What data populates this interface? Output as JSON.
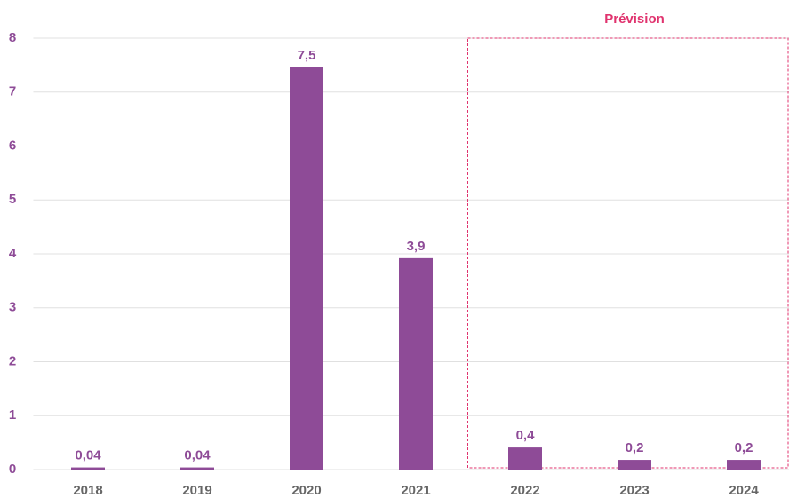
{
  "chart_data": {
    "type": "bar",
    "categories": [
      "2018",
      "2019",
      "2020",
      "2021",
      "2022",
      "2023",
      "2024"
    ],
    "values": [
      0.04,
      0.04,
      7.46,
      3.92,
      0.41,
      0.18,
      0.18
    ],
    "value_labels": [
      "0,04",
      "0,04",
      "7,5",
      "3,9",
      "0,4",
      "0,2",
      "0,2"
    ],
    "color": "#8e4b97",
    "ylim": [
      0,
      8
    ],
    "yticks": [
      0,
      1,
      2,
      3,
      4,
      5,
      6,
      7,
      8
    ],
    "grid": true,
    "annotation": "Prévision"
  }
}
